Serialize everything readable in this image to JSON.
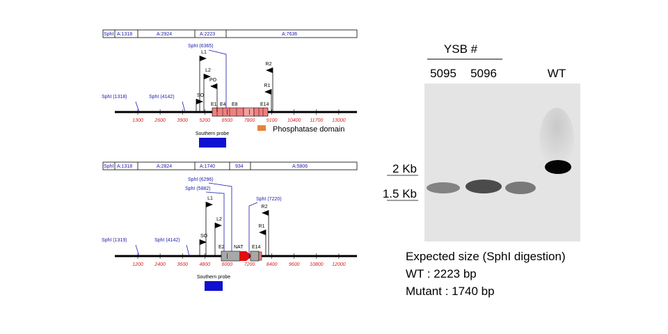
{
  "maps": [
    {
      "fragment_bar": [
        "SphI",
        "A:1318",
        "A:2924",
        "A:2223",
        "A:7636"
      ],
      "sites": [
        "SphI (6365)",
        "SphI (1318)",
        "SphI (4142)"
      ],
      "primers": [
        "L1",
        "L2",
        "PO",
        "SO",
        "R2",
        "R1"
      ],
      "exons": [
        "E1",
        "E4",
        "E8",
        "E14"
      ],
      "axis_ticks": [
        1300,
        2600,
        3900,
        5200,
        6500,
        7800,
        9100,
        10400,
        11700,
        13000
      ],
      "probe": "Southern probe",
      "legend": "Phosphatase domain"
    },
    {
      "fragment_bar": [
        "SphI",
        "A:1318",
        "A:2824",
        "A:1740",
        "934",
        "A:5806"
      ],
      "sites": [
        "SphI (6296)",
        "SphI (5882)",
        "SphI (7220)",
        "SphI (1319)",
        "SphI (4142)"
      ],
      "primers": [
        "L1",
        "L2",
        "SO",
        "R2",
        "R1"
      ],
      "exons": [
        "E2",
        "NAT",
        "E14"
      ],
      "axis_ticks": [
        1200,
        2400,
        3600,
        4800,
        6000,
        7200,
        8400,
        9600,
        10800,
        12000
      ],
      "probe": "Southern probe"
    }
  ],
  "blot": {
    "group": "YSB #",
    "lanes": [
      "5095",
      "5096",
      "WT"
    ],
    "markers": [
      "2 Kb",
      "1.5 Kb"
    ]
  },
  "note": [
    "Expected size (SphI digestion)",
    "WT : 2223 bp",
    "Mutant : 1740 bp"
  ]
}
